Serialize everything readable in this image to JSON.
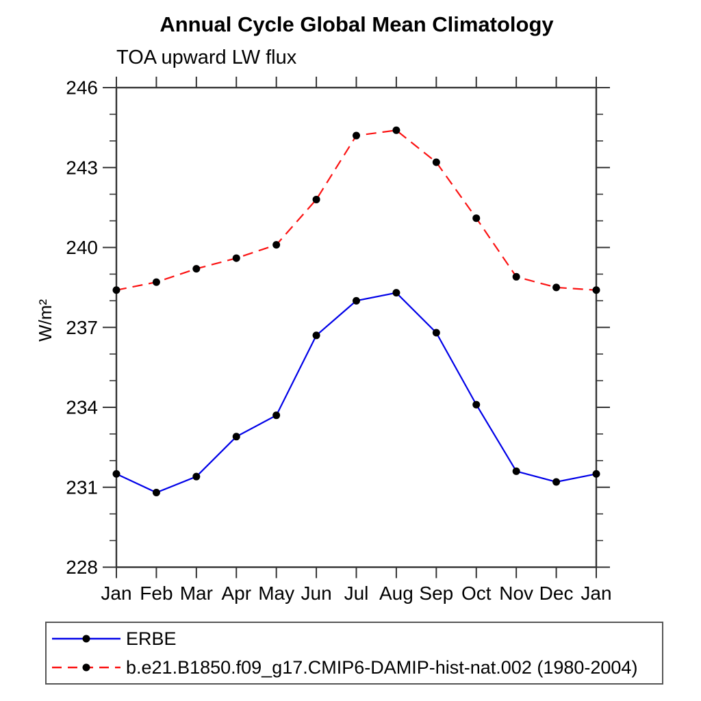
{
  "title": "Annual Cycle Global Mean Climatology",
  "subtitle": "TOA upward LW flux",
  "chart_data": {
    "type": "line",
    "x_categories": [
      "Jan",
      "Feb",
      "Mar",
      "Apr",
      "May",
      "Jun",
      "Jul",
      "Aug",
      "Sep",
      "Oct",
      "Nov",
      "Dec",
      "Jan"
    ],
    "xlabel": "",
    "ylabel": "W/m²",
    "ylim": [
      228,
      246
    ],
    "ytick_major": [
      228,
      231,
      234,
      237,
      240,
      243,
      246
    ],
    "ytick_minor_step": 1,
    "grid": false,
    "legend_position": "bottom",
    "axis_color": "#333333",
    "marker_color": "#000000",
    "series": [
      {
        "name": "ERBE",
        "color": "#0000e8",
        "style": "solid",
        "marker": "filled-circle",
        "values": [
          231.5,
          230.8,
          231.4,
          232.9,
          233.7,
          236.7,
          238.0,
          238.3,
          236.8,
          234.1,
          231.6,
          231.2,
          231.5
        ]
      },
      {
        "name": "b.e21.B1850.f09_g17.CMIP6-DAMIP-hist-nat.002 (1980-2004)",
        "color": "#fb1313",
        "style": "dashed",
        "marker": "filled-circle",
        "values": [
          238.4,
          238.7,
          239.2,
          239.6,
          240.1,
          241.8,
          244.2,
          244.4,
          243.2,
          241.1,
          238.9,
          238.5,
          238.4
        ]
      }
    ]
  }
}
